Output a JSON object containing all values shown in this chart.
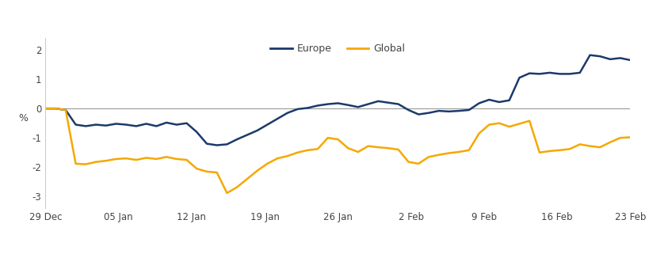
{
  "ylabel": "%",
  "europe_color": "#1b3a6b",
  "global_color": "#f5a800",
  "background_color": "#ffffff",
  "zero_line_color": "#999999",
  "ylim": [
    -3.4,
    2.4
  ],
  "yticks": [
    -3,
    -2,
    -1,
    0,
    1,
    2
  ],
  "xtick_labels": [
    "29 Dec",
    "05 Jan",
    "12 Jan",
    "19 Jan",
    "26 Jan",
    "2 Feb",
    "9 Feb",
    "16 Feb",
    "23 Feb"
  ],
  "legend_europe": "Europe",
  "legend_global": "Global",
  "europe_data": [
    0.0,
    0.0,
    -0.05,
    -0.55,
    -0.6,
    -0.55,
    -0.58,
    -0.52,
    -0.55,
    -0.6,
    -0.52,
    -0.6,
    -0.48,
    -0.55,
    -0.5,
    -0.8,
    -1.2,
    -1.25,
    -1.22,
    -1.05,
    -0.9,
    -0.75,
    -0.55,
    -0.35,
    -0.15,
    -0.02,
    0.02,
    0.1,
    0.15,
    0.18,
    0.12,
    0.05,
    0.15,
    0.25,
    0.2,
    0.15,
    -0.05,
    -0.2,
    -0.15,
    -0.08,
    -0.1,
    -0.08,
    -0.05,
    0.18,
    0.3,
    0.22,
    0.28,
    1.05,
    1.2,
    1.18,
    1.22,
    1.18,
    1.18,
    1.22,
    1.82,
    1.78,
    1.68,
    1.72,
    1.65
  ],
  "global_data": [
    0.0,
    0.0,
    -0.05,
    -1.88,
    -1.9,
    -1.82,
    -1.78,
    -1.72,
    -1.7,
    -1.75,
    -1.68,
    -1.72,
    -1.65,
    -1.72,
    -1.75,
    -2.05,
    -2.15,
    -2.18,
    -2.88,
    -2.68,
    -2.4,
    -2.12,
    -1.88,
    -1.7,
    -1.62,
    -1.5,
    -1.42,
    -1.38,
    -1.0,
    -1.05,
    -1.35,
    -1.48,
    -1.28,
    -1.32,
    -1.35,
    -1.4,
    -1.82,
    -1.88,
    -1.65,
    -1.58,
    -1.52,
    -1.48,
    -1.42,
    -0.85,
    -0.55,
    -0.5,
    -0.62,
    -0.52,
    -0.42,
    -1.5,
    -1.45,
    -1.42,
    -1.38,
    -1.22,
    -1.28,
    -1.32,
    -1.15,
    -1.0,
    -0.98
  ]
}
